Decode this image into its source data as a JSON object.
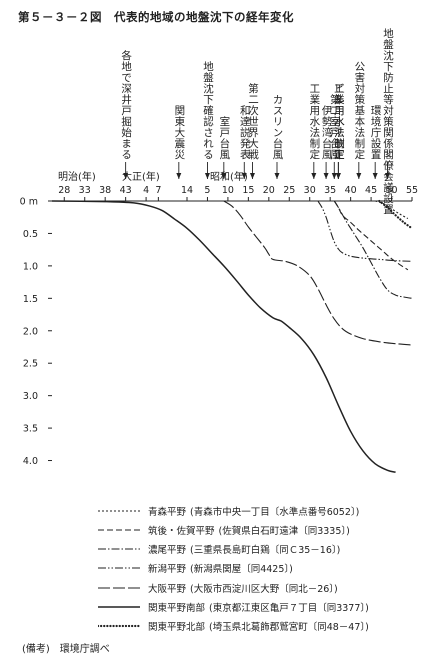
{
  "title": "第５－３－２図　代表的地域の地盤沈下の経年変化",
  "era_labels": [
    "明治(年)",
    "大正(年)",
    "昭和(年)"
  ],
  "events": [
    {
      "label": "各地で深井戸掘始まる",
      "year": 1910
    },
    {
      "label": "関東大震災",
      "year": 1923
    },
    {
      "label": "地盤沈下確認される",
      "year": 1930
    },
    {
      "label": "室戸台風",
      "year": 1934
    },
    {
      "label": "和達説発表",
      "year": 1939
    },
    {
      "label": "第二次世界大戦",
      "year": 1941
    },
    {
      "label": "カスリン台風",
      "year": 1947
    },
    {
      "label": "工業用水法制定",
      "year": 1956
    },
    {
      "label": "伊勢湾台風",
      "year": 1959
    },
    {
      "label": "第二室戸台風",
      "year": 1961
    },
    {
      "label": "ビル用水法制定",
      "year": 1962
    },
    {
      "label": "工業用水法改正",
      "year": 1962
    },
    {
      "label": "公害対策基本法制定",
      "year": 1967
    },
    {
      "label": "環境庁設置",
      "year": 1971
    },
    {
      "label": "地盤沈下防止等対策関係閣僚会議設置",
      "year": 1974
    }
  ],
  "chart_data": {
    "type": "line",
    "x_ticks": [
      {
        "label": "28",
        "year": 1895
      },
      {
        "label": "33",
        "year": 1900
      },
      {
        "label": "38",
        "year": 1905
      },
      {
        "label": "43",
        "year": 1910
      },
      {
        "label": "4",
        "year": 1915
      },
      {
        "label": "7",
        "year": 1918
      },
      {
        "label": "14",
        "year": 1925
      },
      {
        "label": "5",
        "year": 1930
      },
      {
        "label": "10",
        "year": 1935
      },
      {
        "label": "15",
        "year": 1940
      },
      {
        "label": "20",
        "year": 1945
      },
      {
        "label": "25",
        "year": 1950
      },
      {
        "label": "30",
        "year": 1955
      },
      {
        "label": "35",
        "year": 1960
      },
      {
        "label": "40",
        "year": 1965
      },
      {
        "label": "45",
        "year": 1970
      },
      {
        "label": "50",
        "year": 1975
      },
      {
        "label": "55",
        "year": 1980
      }
    ],
    "y_tick_labels": [
      "0 m",
      "0.5",
      "1.0",
      "1.5",
      "2.0",
      "2.5",
      "3.0",
      "3.5",
      "4.0"
    ],
    "y_ticks": [
      0,
      0.5,
      1.0,
      1.5,
      2.0,
      2.5,
      3.0,
      3.5,
      4.0
    ],
    "xlim": [
      1892,
      1980
    ],
    "ylim": [
      0,
      4.3
    ],
    "y_inverted": true,
    "series": [
      {
        "name": "青森平野",
        "location": "(青森市中央一丁目〔水準点番号6052〕)",
        "color": "#222222",
        "dash": "2,2",
        "width": 1.1,
        "points": [
          [
            1971,
            0.0
          ],
          [
            1973,
            0.04
          ],
          [
            1975,
            0.12
          ],
          [
            1977,
            0.2
          ],
          [
            1979,
            0.27
          ]
        ]
      },
      {
        "name": "筑後・佐賀平野",
        "location": "(佐賀県白石町遠津〔同3335〕)",
        "color": "#222222",
        "dash": "6,3",
        "width": 1.1,
        "points": [
          [
            1961,
            0.0
          ],
          [
            1962,
            0.1
          ],
          [
            1963,
            0.22
          ],
          [
            1965,
            0.33
          ],
          [
            1967,
            0.45
          ],
          [
            1969,
            0.56
          ],
          [
            1971,
            0.67
          ],
          [
            1973,
            0.78
          ],
          [
            1975,
            0.89
          ],
          [
            1977,
            0.98
          ],
          [
            1979,
            1.06
          ]
        ]
      },
      {
        "name": "濃尾平野",
        "location": "(三重県長島町白鶏〔同Ｃ35－16〕)",
        "color": "#222222",
        "dash": "8,2,1.5,2",
        "width": 1.1,
        "points": [
          [
            1961,
            0.0
          ],
          [
            1962,
            0.1
          ],
          [
            1964,
            0.32
          ],
          [
            1966,
            0.52
          ],
          [
            1968,
            0.72
          ],
          [
            1970,
            0.95
          ],
          [
            1972,
            1.18
          ],
          [
            1974,
            1.37
          ],
          [
            1976,
            1.45
          ],
          [
            1978,
            1.48
          ],
          [
            1980,
            1.5
          ]
        ]
      },
      {
        "name": "新潟平野",
        "location": "(新潟県関屋〔同4425〕)",
        "color": "#222222",
        "dash": "8,2,1.5,2,1.5,2",
        "width": 1.1,
        "points": [
          [
            1957,
            0.0
          ],
          [
            1958,
            0.1
          ],
          [
            1959,
            0.25
          ],
          [
            1960,
            0.45
          ],
          [
            1961,
            0.63
          ],
          [
            1962,
            0.74
          ],
          [
            1963,
            0.8
          ],
          [
            1965,
            0.85
          ],
          [
            1968,
            0.88
          ],
          [
            1972,
            0.9
          ],
          [
            1976,
            0.92
          ],
          [
            1980,
            0.93
          ]
        ]
      },
      {
        "name": "大阪平野",
        "location": "(大阪市西淀川区大野〔同北－26〕)",
        "color": "#222222",
        "dash": "12,3",
        "width": 1.1,
        "points": [
          [
            1934,
            0.0
          ],
          [
            1936,
            0.08
          ],
          [
            1938,
            0.22
          ],
          [
            1940,
            0.4
          ],
          [
            1942,
            0.56
          ],
          [
            1944,
            0.72
          ],
          [
            1945,
            0.82
          ],
          [
            1946,
            0.9
          ],
          [
            1949,
            0.93
          ],
          [
            1952,
            1.0
          ],
          [
            1955,
            1.15
          ],
          [
            1957,
            1.35
          ],
          [
            1959,
            1.6
          ],
          [
            1961,
            1.82
          ],
          [
            1963,
            1.97
          ],
          [
            1965,
            2.05
          ],
          [
            1968,
            2.12
          ],
          [
            1972,
            2.17
          ],
          [
            1976,
            2.2
          ],
          [
            1980,
            2.22
          ]
        ]
      },
      {
        "name": "関東平野南部",
        "location": "(東京都江東区亀戸７丁目〔同3377〕)",
        "color": "#222222",
        "dash": "",
        "width": 1.5,
        "points": [
          [
            1892,
            0.0
          ],
          [
            1905,
            0.01
          ],
          [
            1912,
            0.03
          ],
          [
            1916,
            0.08
          ],
          [
            1919,
            0.15
          ],
          [
            1922,
            0.28
          ],
          [
            1925,
            0.42
          ],
          [
            1928,
            0.6
          ],
          [
            1931,
            0.8
          ],
          [
            1934,
            1.0
          ],
          [
            1937,
            1.22
          ],
          [
            1940,
            1.45
          ],
          [
            1943,
            1.65
          ],
          [
            1946,
            1.8
          ],
          [
            1948,
            1.85
          ],
          [
            1950,
            1.95
          ],
          [
            1953,
            2.12
          ],
          [
            1956,
            2.37
          ],
          [
            1959,
            2.72
          ],
          [
            1962,
            3.15
          ],
          [
            1965,
            3.55
          ],
          [
            1968,
            3.85
          ],
          [
            1971,
            4.05
          ],
          [
            1974,
            4.15
          ],
          [
            1976,
            4.18
          ]
        ]
      },
      {
        "name": "関東平野北部",
        "location": "(埼玉県北葛飾郡鷲宮町〔同48－47〕)",
        "color": "#222222",
        "dash": "dots",
        "width": 1.1,
        "points": [
          [
            1972,
            0.0
          ],
          [
            1974,
            0.1
          ],
          [
            1976,
            0.22
          ],
          [
            1978,
            0.33
          ],
          [
            1980,
            0.42
          ]
        ]
      }
    ]
  },
  "note": "(備考)　環境庁調べ"
}
